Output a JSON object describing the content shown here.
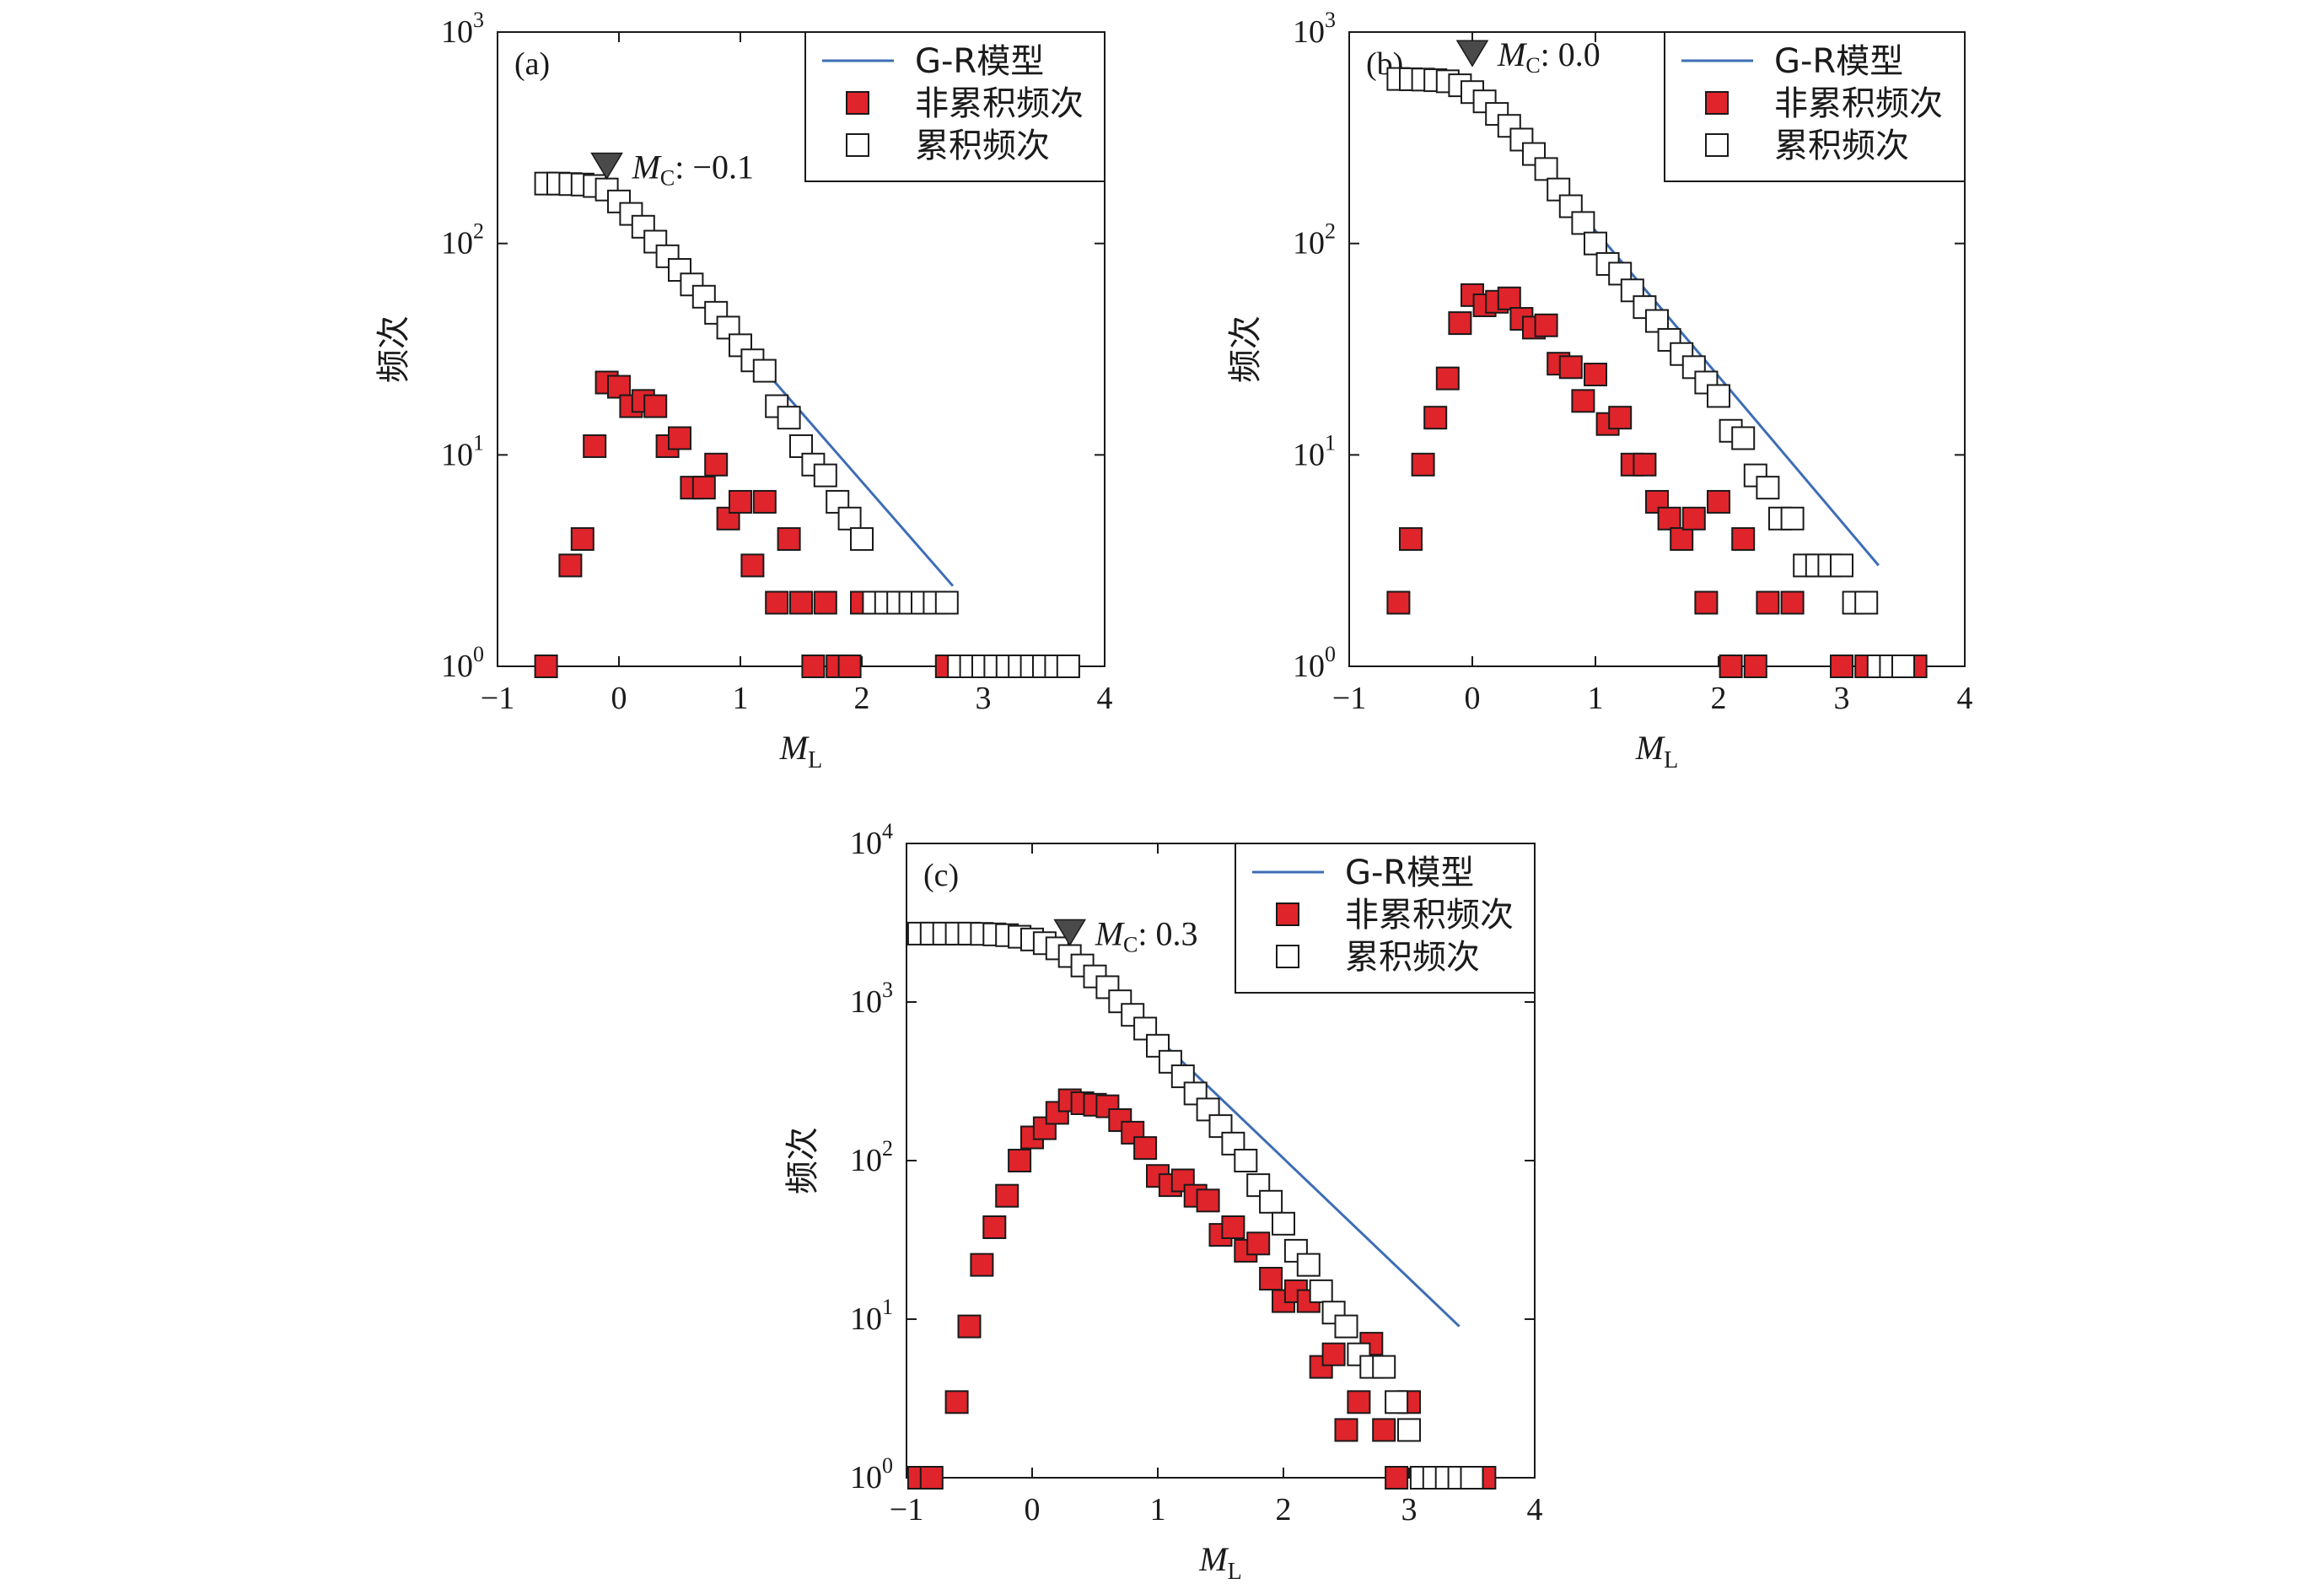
{
  "figure_title": "",
  "colors": {
    "gr_line": "#3d6db5",
    "noncumulative_fill": "#e0242b",
    "marker_stroke": "#1a1a1a",
    "mc_marker": "#4a4a4a",
    "axis": "#1a1a1a",
    "background": "#ffffff"
  },
  "legend_labels": {
    "gr_model": "G-R模型",
    "noncumulative": "非累积频次",
    "cumulative": "累积频次"
  },
  "axis_titles": {
    "x_main": "M",
    "x_sub": "L",
    "y": "频次"
  },
  "chart_data": [
    {
      "type": "scatter",
      "panel_label": "(a)",
      "y_scale": "log",
      "xlim": [
        -1,
        4
      ],
      "ylim": [
        1,
        1000
      ],
      "x_ticks": [
        "−1",
        "0",
        "1",
        "2",
        "3",
        "4"
      ],
      "y_ticks": [
        {
          "base": "10",
          "exp": "0"
        },
        {
          "base": "10",
          "exp": "1"
        },
        {
          "base": "10",
          "exp": "2"
        },
        {
          "base": "10",
          "exp": "3"
        }
      ],
      "legend_position": "top-right",
      "mc": {
        "label_main": "M",
        "label_sub": "C",
        "label_value": ": −0.1",
        "x": -0.1
      },
      "gr_model": {
        "x": [
          -0.1,
          2.75
        ],
        "y": [
          180,
          2.4
        ]
      },
      "series": [
        {
          "name": "非累积频次",
          "kind": "noncumulative",
          "x": [
            -0.6,
            -0.4,
            -0.3,
            -0.2,
            -0.1,
            0.0,
            0.1,
            0.2,
            0.3,
            0.4,
            0.5,
            0.6,
            0.7,
            0.8,
            0.9,
            1.0,
            1.1,
            1.2,
            1.3,
            1.4,
            1.5,
            1.6,
            1.7,
            1.8,
            1.9,
            2.0,
            2.7,
            3.7
          ],
          "y": [
            1,
            3,
            4,
            11,
            22,
            21,
            17,
            18,
            17,
            11,
            12,
            7,
            7,
            9,
            5,
            6,
            3,
            6,
            2,
            4,
            2,
            1,
            2,
            1,
            1,
            2,
            1,
            1
          ]
        },
        {
          "name": "累积频次",
          "kind": "cumulative",
          "x": [
            -0.6,
            -0.5,
            -0.4,
            -0.3,
            -0.2,
            -0.1,
            0.0,
            0.1,
            0.2,
            0.3,
            0.4,
            0.5,
            0.6,
            0.7,
            0.8,
            0.9,
            1.0,
            1.1,
            1.2,
            1.3,
            1.4,
            1.5,
            1.6,
            1.7,
            1.8,
            1.9,
            2.0,
            2.1,
            2.2,
            2.3,
            2.4,
            2.5,
            2.6,
            2.7,
            2.8,
            2.9,
            3.0,
            3.1,
            3.2,
            3.3,
            3.4,
            3.5,
            3.6,
            3.7
          ],
          "y": [
            192,
            192,
            191,
            190,
            187,
            180,
            158,
            138,
            120,
            102,
            87,
            75,
            64,
            56,
            47,
            40,
            33,
            28,
            25,
            17,
            15,
            11,
            9,
            8,
            6,
            5,
            4,
            2,
            2,
            2,
            2,
            2,
            2,
            2,
            1,
            1,
            1,
            1,
            1,
            1,
            1,
            1,
            1,
            1
          ]
        }
      ]
    },
    {
      "type": "scatter",
      "panel_label": "(b)",
      "y_scale": "log",
      "xlim": [
        -1,
        4
      ],
      "ylim": [
        1,
        1000
      ],
      "x_ticks": [
        "−1",
        "0",
        "1",
        "2",
        "3",
        "4"
      ],
      "y_ticks": [
        {
          "base": "10",
          "exp": "0"
        },
        {
          "base": "10",
          "exp": "1"
        },
        {
          "base": "10",
          "exp": "2"
        },
        {
          "base": "10",
          "exp": "3"
        }
      ],
      "legend_position": "top-right",
      "mc": {
        "label_main": "M",
        "label_sub": "C",
        "label_value": ": 0.0",
        "x": 0.0
      },
      "gr_model": {
        "x": [
          0.0,
          3.3
        ],
        "y": [
          560,
          3.0
        ]
      },
      "series": [
        {
          "name": "非累积频次",
          "kind": "noncumulative",
          "x": [
            -0.6,
            -0.5,
            -0.4,
            -0.3,
            -0.2,
            -0.1,
            0.0,
            0.1,
            0.2,
            0.3,
            0.4,
            0.5,
            0.6,
            0.7,
            0.8,
            0.9,
            1.0,
            1.1,
            1.2,
            1.3,
            1.4,
            1.5,
            1.6,
            1.7,
            1.8,
            1.9,
            2.0,
            2.1,
            2.2,
            2.3,
            2.4,
            2.6,
            3.0,
            3.2,
            3.6
          ],
          "y": [
            2,
            4,
            9,
            15,
            23,
            42,
            57,
            51,
            53,
            55,
            44,
            40,
            41,
            27,
            26,
            18,
            24,
            14,
            15,
            9,
            9,
            6,
            5,
            4,
            5,
            2,
            6,
            1,
            4,
            1,
            2,
            2,
            1,
            1,
            1
          ]
        },
        {
          "name": "累积频次",
          "kind": "cumulative",
          "x": [
            -0.6,
            -0.5,
            -0.4,
            -0.3,
            -0.2,
            -0.1,
            0.0,
            0.1,
            0.2,
            0.3,
            0.4,
            0.5,
            0.6,
            0.7,
            0.8,
            0.9,
            1.0,
            1.1,
            1.2,
            1.3,
            1.4,
            1.5,
            1.6,
            1.7,
            1.8,
            1.9,
            2.0,
            2.1,
            2.2,
            2.3,
            2.4,
            2.5,
            2.6,
            2.7,
            2.8,
            2.9,
            3.0,
            3.1,
            3.2,
            3.3,
            3.4,
            3.5
          ],
          "y": [
            600,
            598,
            596,
            592,
            585,
            560,
            520,
            470,
            410,
            360,
            310,
            265,
            225,
            180,
            150,
            125,
            100,
            80,
            72,
            60,
            50,
            43,
            35,
            30,
            26,
            22,
            19,
            13,
            12,
            8,
            7,
            5,
            5,
            3,
            3,
            3,
            3,
            2,
            2,
            1,
            1,
            1
          ]
        }
      ]
    },
    {
      "type": "scatter",
      "panel_label": "(c)",
      "y_scale": "log",
      "xlim": [
        -1,
        4
      ],
      "ylim": [
        1,
        10000
      ],
      "x_ticks": [
        "−1",
        "0",
        "1",
        "2",
        "3",
        "4"
      ],
      "y_ticks": [
        {
          "base": "10",
          "exp": "0"
        },
        {
          "base": "10",
          "exp": "1"
        },
        {
          "base": "10",
          "exp": "2"
        },
        {
          "base": "10",
          "exp": "3"
        },
        {
          "base": "10",
          "exp": "4"
        }
      ],
      "legend_position": "top-right",
      "mc": {
        "label_main": "M",
        "label_sub": "C",
        "label_value": ": 0.3",
        "x": 0.3
      },
      "gr_model": {
        "x": [
          0.3,
          3.4
        ],
        "y": [
          2000,
          9
        ]
      },
      "series": [
        {
          "name": "非累积频次",
          "kind": "noncumulative",
          "x": [
            -0.9,
            -0.8,
            -0.6,
            -0.5,
            -0.4,
            -0.3,
            -0.2,
            -0.1,
            0.0,
            0.1,
            0.2,
            0.3,
            0.4,
            0.5,
            0.6,
            0.7,
            0.8,
            0.9,
            1.0,
            1.1,
            1.2,
            1.3,
            1.4,
            1.5,
            1.6,
            1.7,
            1.8,
            1.9,
            2.0,
            2.1,
            2.2,
            2.3,
            2.4,
            2.5,
            2.6,
            2.7,
            2.8,
            2.9,
            3.0,
            3.2,
            3.3,
            3.4,
            3.5,
            3.6
          ],
          "y": [
            1,
            1,
            3,
            9,
            22,
            38,
            60,
            100,
            140,
            160,
            200,
            240,
            230,
            225,
            220,
            180,
            150,
            120,
            80,
            70,
            75,
            60,
            56,
            34,
            38,
            27,
            30,
            18,
            13,
            15,
            13,
            5,
            6,
            2,
            3,
            7,
            2,
            1,
            3,
            1,
            1,
            1,
            1,
            1
          ]
        },
        {
          "name": "累积频次",
          "kind": "cumulative",
          "x": [
            -0.9,
            -0.8,
            -0.7,
            -0.6,
            -0.5,
            -0.4,
            -0.3,
            -0.2,
            -0.1,
            0.0,
            0.1,
            0.2,
            0.3,
            0.4,
            0.5,
            0.6,
            0.7,
            0.8,
            0.9,
            1.0,
            1.1,
            1.2,
            1.3,
            1.4,
            1.5,
            1.6,
            1.7,
            1.8,
            1.9,
            2.0,
            2.1,
            2.2,
            2.3,
            2.4,
            2.5,
            2.6,
            2.7,
            2.8,
            2.9,
            3.0,
            3.1,
            3.2,
            3.3,
            3.4,
            3.5
          ],
          "y": [
            2700,
            2700,
            2700,
            2700,
            2700,
            2690,
            2670,
            2640,
            2580,
            2480,
            2350,
            2180,
            1950,
            1700,
            1450,
            1240,
            1010,
            830,
            680,
            530,
            420,
            340,
            265,
            210,
            165,
            128,
            100,
            70,
            55,
            40,
            27,
            22,
            15,
            11,
            9,
            6,
            5,
            5,
            3,
            2,
            1,
            1,
            1,
            1,
            1
          ]
        }
      ]
    }
  ]
}
